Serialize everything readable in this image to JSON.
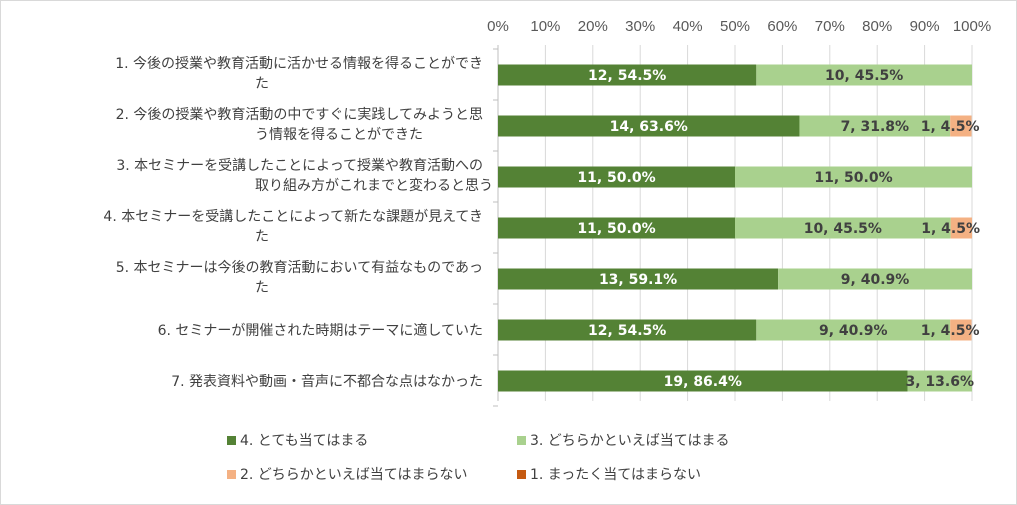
{
  "chart_data": {
    "type": "bar",
    "orientation": "horizontal",
    "stacked": "percent",
    "title": "",
    "xlabel": "",
    "ylabel": "",
    "xlim": [
      0,
      100
    ],
    "x_ticks": [
      "0%",
      "10%",
      "20%",
      "30%",
      "40%",
      "50%",
      "60%",
      "70%",
      "80%",
      "90%",
      "100%"
    ],
    "grid": true,
    "legend_position": "bottom",
    "categories": [
      [
        "1. 今後の授業や教育活動に活かせる情報を得ることができ",
        "た"
      ],
      [
        "2. 今後の授業や教育活動の中ですぐに実践してみようと思",
        "う情報を得ることができた"
      ],
      [
        "3. 本セミナーを受講したことによって授業や教育活動への",
        "取り組み方がこれまでと変わると思う"
      ],
      [
        "4. 本セミナーを受講したことによって新たな課題が見えてき",
        "た"
      ],
      [
        "5. 本セミナーは今後の教育活動において有益なものであっ",
        "た"
      ],
      [
        "6. セミナーが開催された時期はテーマに適していた"
      ],
      [
        "7. 発表資料や動画・音声に不都合な点はなかった"
      ]
    ],
    "series": [
      {
        "name": "4. とても当てはまる",
        "color": "#548235",
        "label_color": "#ffffff",
        "values": [
          54.5,
          63.6,
          50.0,
          50.0,
          59.1,
          54.5,
          86.4
        ],
        "labels": [
          "12, 54.5%",
          "14, 63.6%",
          "11, 50.0%",
          "11, 50.0%",
          "13, 59.1%",
          "12, 54.5%",
          "19, 86.4%"
        ]
      },
      {
        "name": "3. どちらかといえば当てはまる",
        "color": "#a9d18e",
        "label_color": "#404040",
        "values": [
          45.5,
          31.8,
          50.0,
          45.5,
          40.9,
          40.9,
          13.6
        ],
        "labels": [
          "10, 45.5%",
          "7, 31.8%",
          "11, 50.0%",
          "10, 45.5%",
          "9, 40.9%",
          "9, 40.9%",
          "3, 13.6%"
        ]
      },
      {
        "name": "2. どちらかといえば当てはまらない",
        "color": "#f4b183",
        "label_color": "#404040",
        "values": [
          0,
          4.5,
          0,
          4.5,
          0,
          4.5,
          0
        ],
        "labels": [
          "",
          "1, 4.5%",
          "",
          "1, 4.5%",
          "",
          "1, 4.5%",
          ""
        ]
      },
      {
        "name": "1. まったく当てはまらない",
        "color": "#c55a11",
        "label_color": "#404040",
        "values": [
          0,
          0,
          0,
          0,
          0,
          0,
          0
        ],
        "labels": [
          "",
          "",
          "",
          "",
          "",
          "",
          ""
        ]
      }
    ]
  }
}
